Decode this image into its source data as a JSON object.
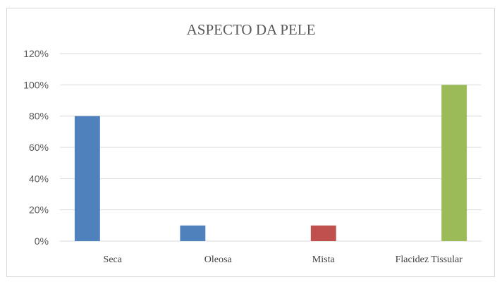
{
  "chart_data": {
    "type": "bar",
    "title": "ASPECTO DA PELE",
    "xlabel": "",
    "ylabel": "",
    "categories": [
      "Seca",
      "Oleosa",
      "Mista",
      "Flacidez Tissular"
    ],
    "series": [
      {
        "values": [
          80,
          10,
          null,
          null
        ],
        "color": "#4f81bd"
      },
      {
        "values": [
          null,
          null,
          10,
          null
        ],
        "color": "#c0504d"
      },
      {
        "values": [
          null,
          null,
          null,
          100
        ],
        "color": "#9bbb59"
      }
    ],
    "ylim": [
      0,
      120
    ],
    "yticks": [
      0,
      20,
      40,
      60,
      80,
      100,
      120
    ],
    "ytick_format": "%",
    "grid": true,
    "legend": "none"
  }
}
